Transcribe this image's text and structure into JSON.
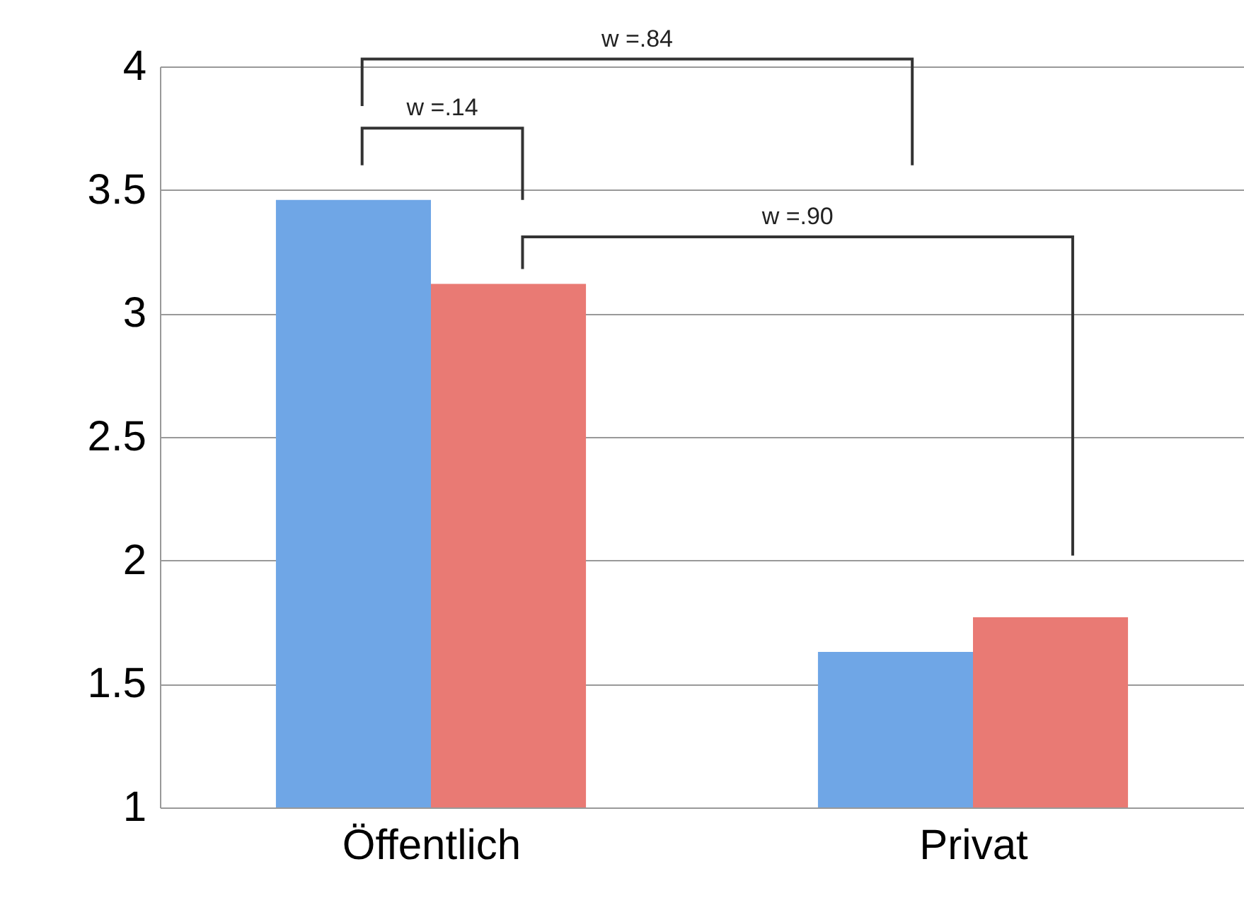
{
  "chart_data": {
    "type": "bar",
    "categories": [
      "Öffentlich",
      "Privat"
    ],
    "series": [
      {
        "color": "#6fa6e6",
        "values": [
          3.46,
          1.63
        ]
      },
      {
        "color": "#e97a74",
        "values": [
          3.12,
          1.77
        ]
      }
    ],
    "ylim": [
      1,
      4
    ],
    "yticks": [
      1,
      1.5,
      2,
      2.5,
      3,
      3.5,
      4
    ],
    "grid": "y",
    "annotations": [
      "w =.84",
      "w =.14",
      "w =.90"
    ]
  }
}
